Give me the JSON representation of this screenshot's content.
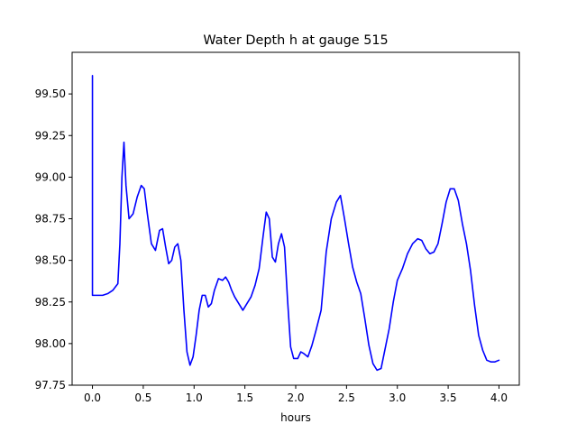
{
  "chart_data": {
    "type": "line",
    "title": "Water Depth h at gauge 515",
    "xlabel": "hours",
    "ylabel": "",
    "xlim": [
      -0.2,
      4.2
    ],
    "ylim": [
      97.75,
      99.75
    ],
    "grid": false,
    "xticks": [
      0.0,
      0.5,
      1.0,
      1.5,
      2.0,
      2.5,
      3.0,
      3.5,
      4.0
    ],
    "xtick_labels": [
      "0.0",
      "0.5",
      "1.0",
      "1.5",
      "2.0",
      "2.5",
      "3.0",
      "3.5",
      "4.0"
    ],
    "yticks": [
      97.75,
      98.0,
      98.25,
      98.5,
      98.75,
      99.0,
      99.25,
      99.5
    ],
    "ytick_labels": [
      "97.75",
      "98.00",
      "98.25",
      "98.50",
      "98.75",
      "99.00",
      "99.25",
      "99.50"
    ],
    "series": [
      {
        "color": "#0000ff",
        "x": [
          0.0,
          0.0,
          0.01,
          0.1,
          0.15,
          0.2,
          0.25,
          0.27,
          0.29,
          0.31,
          0.33,
          0.36,
          0.4,
          0.44,
          0.48,
          0.51,
          0.54,
          0.58,
          0.62,
          0.66,
          0.69,
          0.72,
          0.75,
          0.78,
          0.81,
          0.84,
          0.87,
          0.9,
          0.93,
          0.96,
          0.99,
          1.02,
          1.05,
          1.08,
          1.11,
          1.14,
          1.17,
          1.2,
          1.24,
          1.28,
          1.31,
          1.34,
          1.37,
          1.4,
          1.44,
          1.48,
          1.52,
          1.56,
          1.6,
          1.64,
          1.68,
          1.71,
          1.74,
          1.77,
          1.8,
          1.83,
          1.86,
          1.89,
          1.92,
          1.95,
          1.98,
          2.02,
          2.05,
          2.08,
          2.12,
          2.16,
          2.2,
          2.25,
          2.3,
          2.35,
          2.4,
          2.44,
          2.48,
          2.52,
          2.56,
          2.6,
          2.64,
          2.68,
          2.72,
          2.76,
          2.8,
          2.84,
          2.88,
          2.92,
          2.96,
          3.0,
          3.05,
          3.1,
          3.15,
          3.2,
          3.24,
          3.28,
          3.32,
          3.36,
          3.4,
          3.44,
          3.48,
          3.52,
          3.56,
          3.6,
          3.64,
          3.68,
          3.72,
          3.76,
          3.8,
          3.84,
          3.88,
          3.92,
          3.96,
          4.0
        ],
        "y": [
          99.61,
          98.29,
          98.29,
          98.29,
          98.3,
          98.32,
          98.36,
          98.6,
          99.0,
          99.21,
          98.95,
          98.75,
          98.78,
          98.88,
          98.95,
          98.93,
          98.78,
          98.6,
          98.56,
          98.68,
          98.69,
          98.58,
          98.48,
          98.5,
          98.58,
          98.6,
          98.5,
          98.2,
          97.95,
          97.87,
          97.92,
          98.05,
          98.2,
          98.29,
          98.29,
          98.22,
          98.24,
          98.32,
          98.39,
          98.38,
          98.4,
          98.37,
          98.32,
          98.28,
          98.24,
          98.2,
          98.24,
          98.28,
          98.35,
          98.45,
          98.65,
          98.79,
          98.75,
          98.52,
          98.49,
          98.6,
          98.66,
          98.58,
          98.26,
          97.98,
          97.91,
          97.91,
          97.95,
          97.94,
          97.92,
          97.99,
          98.08,
          98.2,
          98.55,
          98.75,
          98.85,
          98.89,
          98.75,
          98.6,
          98.46,
          98.37,
          98.3,
          98.15,
          97.99,
          97.88,
          97.84,
          97.85,
          97.97,
          98.09,
          98.25,
          98.38,
          98.45,
          98.54,
          98.6,
          98.63,
          98.62,
          98.57,
          98.54,
          98.55,
          98.6,
          98.72,
          98.85,
          98.93,
          98.93,
          98.86,
          98.72,
          98.6,
          98.44,
          98.23,
          98.05,
          97.96,
          97.9,
          97.89,
          97.89,
          97.9
        ]
      }
    ]
  }
}
